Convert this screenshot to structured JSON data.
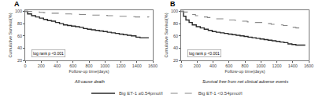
{
  "chart_data": [
    {
      "type": "step",
      "title": "All-cause death",
      "x_label": "Follow-up time(days)",
      "y_label": "Cumulative Survival(%)",
      "annotations": [
        "A",
        "log rank p <0.001"
      ],
      "xlim": [
        0,
        1600
      ],
      "xticks": [
        0,
        200,
        400,
        600,
        800,
        1000,
        1200,
        1400,
        1600
      ],
      "ylim": [
        20,
        102
      ],
      "yticks": [
        20,
        40,
        60,
        80,
        100
      ],
      "grid": false,
      "series": [
        {
          "name": "Big ET-1 ≥0.54pmol/l",
          "color": "#2a2a2a",
          "line_style": "solid",
          "x": [
            0,
            30,
            80,
            130,
            180,
            230,
            280,
            330,
            380,
            430,
            480,
            530,
            580,
            630,
            680,
            730,
            780,
            830,
            880,
            930,
            980,
            1030,
            1080,
            1130,
            1180,
            1230,
            1280,
            1330,
            1380,
            1390,
            1430,
            1440,
            1490,
            1550
          ],
          "values": [
            100,
            96,
            93,
            91,
            89,
            87,
            85,
            84,
            82,
            80,
            78,
            77,
            76,
            75,
            74,
            72,
            71,
            70,
            69,
            68,
            67,
            66,
            65,
            64,
            63,
            62,
            61,
            60,
            60,
            58,
            58,
            57,
            57,
            57
          ]
        },
        {
          "name": "Big ET-1 <0.54pmol/l",
          "color": "#888888",
          "line_style": "dashed",
          "x": [
            0,
            30,
            80,
            130,
            180,
            230,
            280,
            330,
            380,
            430,
            480,
            530,
            580,
            630,
            680,
            730,
            780,
            830,
            880,
            930,
            980,
            1030,
            1080,
            1130,
            1180,
            1230,
            1280,
            1330,
            1380,
            1430,
            1490,
            1550
          ],
          "values": [
            100,
            100,
            99.5,
            99,
            98.5,
            98,
            97.5,
            97,
            97,
            96.5,
            96,
            96,
            95.5,
            95.5,
            95,
            95,
            94.5,
            94,
            94,
            93.5,
            93.5,
            93,
            93,
            92.5,
            92,
            92,
            91.5,
            91.5,
            91,
            91,
            91,
            90.5
          ]
        }
      ]
    },
    {
      "type": "step",
      "title": "Survival free from net clinical adverse events",
      "x_label": "Follow-up time(days)",
      "y_label": "Cumulative Survival(%)",
      "annotations": [
        "B",
        "log rank p <0.001"
      ],
      "xlim": [
        0,
        1600
      ],
      "xticks": [
        0,
        200,
        400,
        600,
        800,
        1000,
        1200,
        1400,
        1600
      ],
      "ylim": [
        20,
        102
      ],
      "yticks": [
        20,
        40,
        60,
        80,
        100
      ],
      "grid": false,
      "series": [
        {
          "name": "Big ET-1 ≥0.54pmol/l",
          "color": "#2a2a2a",
          "line_style": "solid",
          "x": [
            0,
            30,
            60,
            100,
            140,
            190,
            240,
            290,
            340,
            390,
            440,
            490,
            540,
            590,
            640,
            690,
            740,
            790,
            840,
            890,
            940,
            990,
            1040,
            1090,
            1140,
            1190,
            1240,
            1290,
            1330,
            1340,
            1390,
            1440,
            1490,
            1550
          ],
          "values": [
            100,
            92,
            86,
            82,
            78,
            75,
            73,
            71,
            69,
            67,
            66,
            65,
            64,
            63,
            62,
            61,
            60,
            59,
            58,
            57,
            56,
            55,
            54,
            53,
            52,
            51,
            50,
            49,
            49,
            47,
            46,
            45,
            45,
            44
          ]
        },
        {
          "name": "Big ET-1 <0.54pmol/l",
          "color": "#888888",
          "line_style": "dashed",
          "x": [
            0,
            30,
            80,
            130,
            180,
            230,
            280,
            330,
            380,
            430,
            480,
            530,
            580,
            630,
            680,
            730,
            780,
            830,
            880,
            930,
            980,
            1030,
            1080,
            1130,
            1180,
            1230,
            1280,
            1330,
            1380,
            1390,
            1430,
            1440,
            1490,
            1550
          ],
          "values": [
            100,
            99,
            97,
            95,
            93,
            92,
            91,
            90,
            89,
            88,
            88,
            87,
            86,
            86,
            85,
            84,
            84,
            83,
            83,
            82,
            82,
            81,
            80,
            79,
            79,
            78,
            77,
            76,
            75,
            74,
            74,
            73,
            73,
            73
          ]
        }
      ]
    }
  ]
}
